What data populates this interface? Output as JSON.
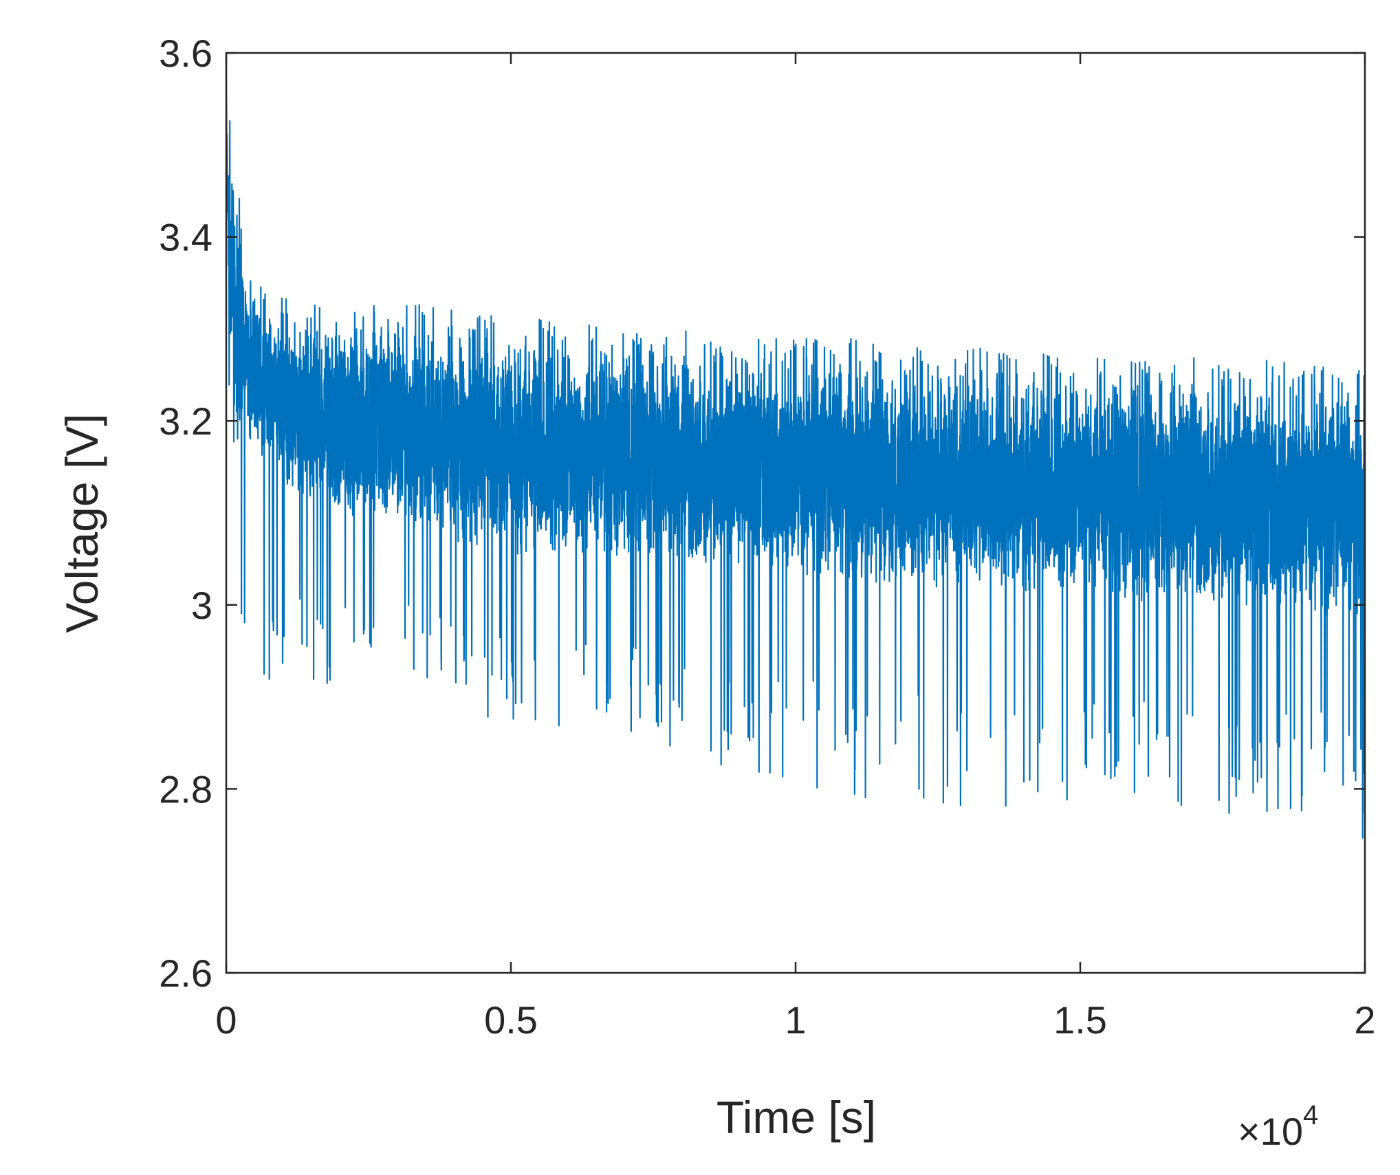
{
  "chart_data": {
    "type": "line",
    "xlabel": "Time [s]",
    "ylabel": "Voltage [V]",
    "x_multiplier": "×10",
    "x_multiplier_exponent": "4",
    "xlim": [
      0,
      20000
    ],
    "ylim": [
      2.6,
      3.6
    ],
    "x_ticks": [
      0,
      5000,
      10000,
      15000,
      20000
    ],
    "x_tick_labels": [
      "0",
      "0.5",
      "1",
      "1.5",
      "2"
    ],
    "y_ticks": [
      2.6,
      2.8,
      3.0,
      3.2,
      3.4,
      3.6
    ],
    "y_tick_labels": [
      "2.6",
      "2.8",
      "3",
      "3.2",
      "3.4",
      "3.6"
    ],
    "grid": false,
    "line_color": "#0072BD",
    "series": [
      {
        "x": [
          0,
          100,
          200,
          300,
          500,
          800,
          1200,
          2000,
          3000,
          4000,
          5000,
          6000,
          7000,
          8000,
          9000,
          10000,
          11000,
          12000,
          13000,
          14000,
          15000,
          16000,
          17000,
          18000,
          19000,
          19800,
          20000
        ],
        "mean": [
          3.5,
          3.35,
          3.3,
          3.27,
          3.25,
          3.23,
          3.21,
          3.2,
          3.19,
          3.18,
          3.17,
          3.165,
          3.16,
          3.155,
          3.15,
          3.145,
          3.14,
          3.135,
          3.13,
          3.13,
          3.125,
          3.12,
          3.12,
          3.115,
          3.11,
          3.105,
          3.1
        ],
        "upper": [
          3.6,
          3.52,
          3.49,
          3.37,
          3.36,
          3.34,
          3.33,
          3.33,
          3.33,
          3.32,
          3.32,
          3.31,
          3.3,
          3.3,
          3.29,
          3.29,
          3.29,
          3.28,
          3.28,
          3.28,
          3.27,
          3.27,
          3.27,
          3.27,
          3.26,
          3.26,
          3.25
        ],
        "lower": [
          3.24,
          3.2,
          3.0,
          2.97,
          2.94,
          2.91,
          2.91,
          2.91,
          2.91,
          2.89,
          2.87,
          2.86,
          2.85,
          2.83,
          2.82,
          2.8,
          2.79,
          2.78,
          2.78,
          2.78,
          2.78,
          2.78,
          2.77,
          2.77,
          2.77,
          2.75,
          2.74
        ]
      }
    ]
  }
}
